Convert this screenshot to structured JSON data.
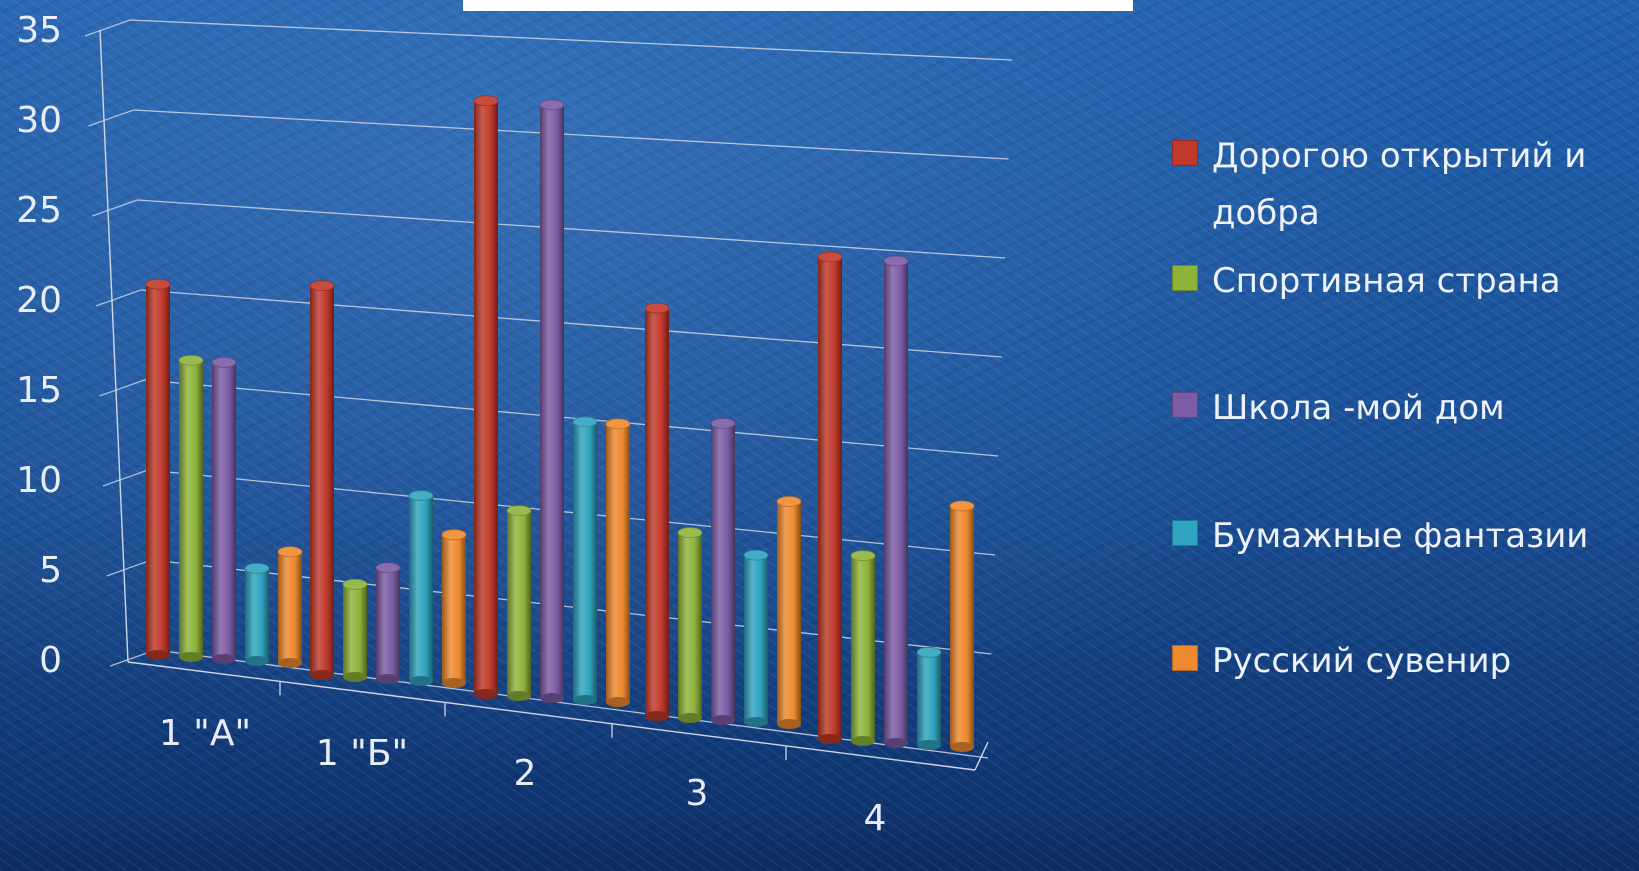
{
  "chart_data": {
    "type": "bar",
    "title": "",
    "xlabel": "",
    "ylabel": "",
    "ylim": [
      0,
      35
    ],
    "yticks": [
      "0",
      "5",
      "10",
      "15",
      "20",
      "25",
      "30",
      "35"
    ],
    "categories": [
      "1 \"А\"",
      "1 \"Б\"",
      "2",
      "3",
      "4"
    ],
    "series": [
      {
        "name": "Дорогою открытий и добра",
        "color": "#c0392b",
        "values": [
          20,
          21,
          32,
          22,
          26
        ]
      },
      {
        "name": "Спортивная страна",
        "color": "#8db33a",
        "values": [
          16,
          5,
          10,
          10,
          10
        ]
      },
      {
        "name": "Школа -мой дом",
        "color": "#7b5ca5",
        "values": [
          16,
          6,
          32,
          16,
          26
        ]
      },
      {
        "name": "Бумажные фантазии",
        "color": "#2fa3bf",
        "values": [
          5,
          10,
          15,
          9,
          5
        ]
      },
      {
        "name": "Русский сувенир",
        "color": "#ee8a2e",
        "values": [
          6,
          8,
          15,
          12,
          13
        ]
      }
    ],
    "legend_position": "right",
    "grid": true,
    "style": "3d-cylinder"
  }
}
